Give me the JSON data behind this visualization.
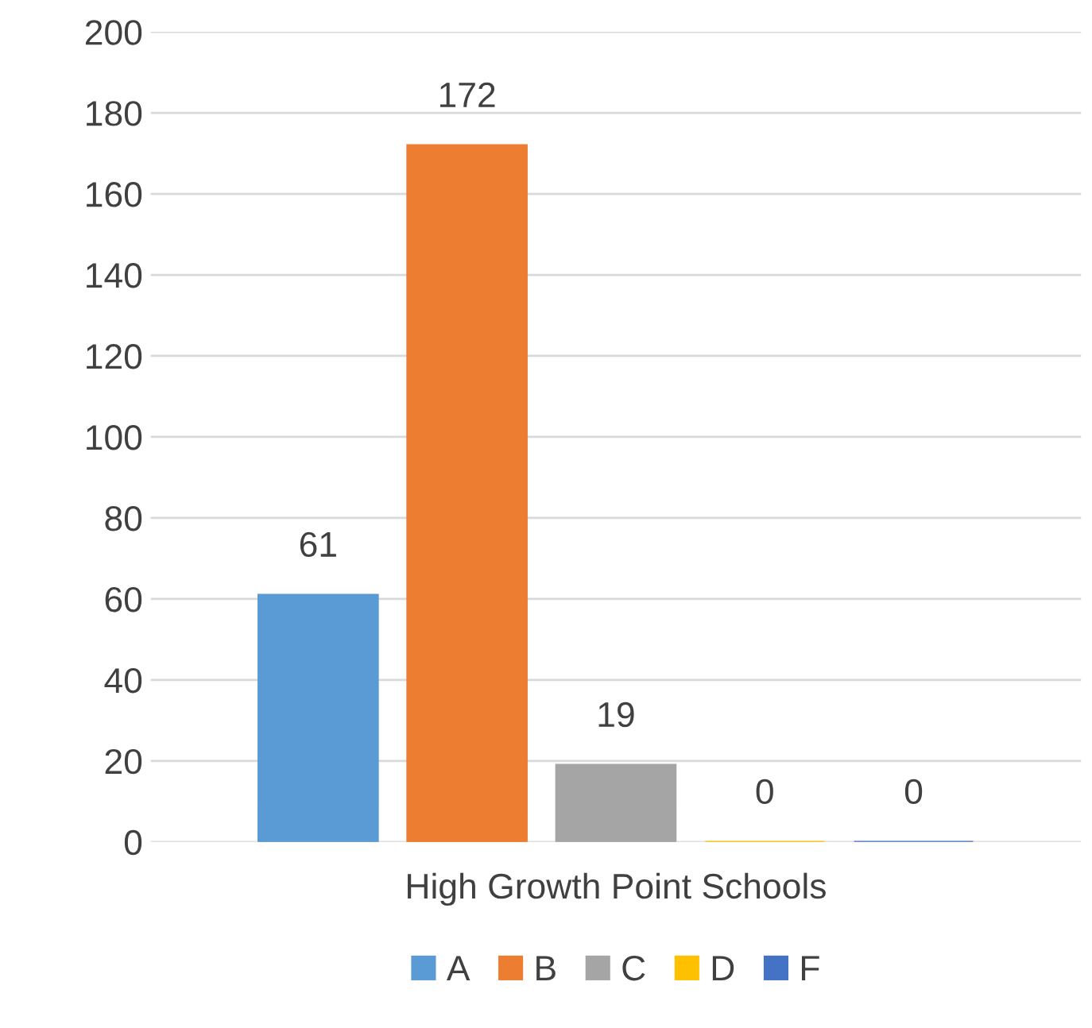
{
  "chart_data": {
    "type": "bar",
    "categories": [
      "High Growth Point Schools"
    ],
    "series": [
      {
        "name": "A",
        "color": "#5b9bd5",
        "values": [
          61
        ]
      },
      {
        "name": "B",
        "color": "#ed7d31",
        "values": [
          172
        ]
      },
      {
        "name": "C",
        "color": "#a5a5a5",
        "values": [
          19
        ]
      },
      {
        "name": "D",
        "color": "#ffc000",
        "values": [
          0
        ]
      },
      {
        "name": "F",
        "color": "#4472c4",
        "values": [
          0
        ]
      }
    ],
    "ylim": [
      0,
      200
    ],
    "yticks": [
      0,
      20,
      40,
      60,
      80,
      100,
      120,
      140,
      160,
      180,
      200
    ],
    "grid": "y",
    "legend": "bottom",
    "data_labels": true
  }
}
